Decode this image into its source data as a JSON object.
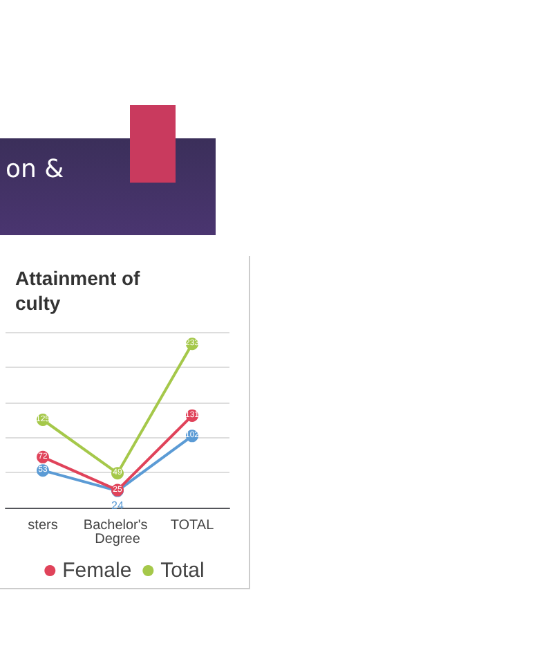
{
  "chart_data": {
    "type": "line",
    "title": "Attainment of\nculty",
    "annotations": [
      "on &"
    ],
    "categories": [
      "sters",
      "Bachelor's Degree",
      "TOTAL"
    ],
    "series": [
      {
        "color": "#5b9bd5",
        "values": [
          53,
          24,
          102
        ]
      },
      {
        "name": "Female",
        "color": "#e0435a",
        "values": [
          72,
          25,
          131
        ]
      },
      {
        "name": "Total",
        "color": "#a5c84a",
        "values": [
          125,
          49,
          233
        ]
      }
    ],
    "data_labels": true,
    "grid": "y",
    "legend": "bottom",
    "marker": "circle",
    "line_style": "solid"
  }
}
